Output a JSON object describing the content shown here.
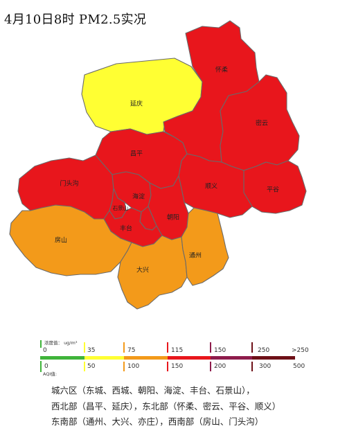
{
  "title": "4月10日8时 PM2.5实况",
  "colors": {
    "level_green": "#3fb43a",
    "level_yellow": "#ffff33",
    "level_orange": "#f39a1a",
    "level_red": "#e8161c",
    "level_purple": "#8e1c4c",
    "level_maroon": "#6e1017",
    "border": "#6a6a6a"
  },
  "districts": [
    {
      "id": "huairou",
      "name": "怀柔",
      "level": "red"
    },
    {
      "id": "yanqing",
      "name": "延庆",
      "level": "yellow"
    },
    {
      "id": "miyun",
      "name": "密云",
      "level": "red"
    },
    {
      "id": "changping",
      "name": "昌平",
      "level": "red"
    },
    {
      "id": "shunyi",
      "name": "顺义",
      "level": "red"
    },
    {
      "id": "pinggu",
      "name": "平谷",
      "level": "red"
    },
    {
      "id": "mentougou",
      "name": "门头沟",
      "level": "red"
    },
    {
      "id": "haidian",
      "name": "海淀",
      "level": "red"
    },
    {
      "id": "shijingshan",
      "name": "石景山",
      "level": "red"
    },
    {
      "id": "chaoyang",
      "name": "朝阳",
      "level": "red"
    },
    {
      "id": "fengtai",
      "name": "丰台",
      "level": "red"
    },
    {
      "id": "fangshan",
      "name": "房山",
      "level": "orange"
    },
    {
      "id": "daxing",
      "name": "大兴",
      "level": "orange"
    },
    {
      "id": "tongzhou",
      "name": "通州",
      "level": "orange"
    }
  ],
  "legend": {
    "conc_caption": "浓度值： ug/m³",
    "conc_ticks": [
      "0",
      "35",
      "75",
      "115",
      "150",
      "250",
      ">250"
    ],
    "aqi_caption": "AQI值:",
    "aqi_ticks": [
      "0",
      "50",
      "100",
      "150",
      "200",
      "300",
      "500"
    ]
  },
  "notes": [
    "城六区（东城、西城、朝阳、海淀、丰台、石景山），",
    "西北部（昌平、延庆），东北部（怀柔、密云、平谷、顺义）",
    "东南部（通州、大兴、亦庄），西南部（房山、门头沟）"
  ]
}
